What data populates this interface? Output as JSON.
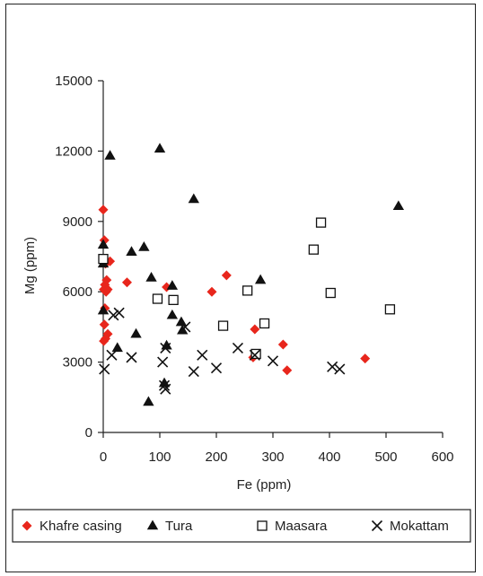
{
  "chart_data": {
    "type": "scatter",
    "title": "",
    "xlabel": "Fe (ppm)",
    "ylabel": "Mg (ppm)",
    "xlim": [
      0,
      600
    ],
    "ylim": [
      0,
      15000
    ],
    "xticks": [
      0,
      100,
      200,
      300,
      400,
      500,
      600
    ],
    "yticks": [
      0,
      3000,
      6000,
      9000,
      12000,
      15000
    ],
    "grid": false,
    "legend_placement": "bottom",
    "series": [
      {
        "name": "Khafre casing",
        "marker": "diamond",
        "color": "#e8261c",
        "points": [
          [
            0,
            9500
          ],
          [
            2,
            8200
          ],
          [
            4,
            7200
          ],
          [
            6,
            6500
          ],
          [
            3,
            6300
          ],
          [
            1,
            6100
          ],
          [
            5,
            6000
          ],
          [
            8,
            6100
          ],
          [
            3,
            5300
          ],
          [
            2,
            4600
          ],
          [
            8,
            4200
          ],
          [
            4,
            4000
          ],
          [
            1,
            3900
          ],
          [
            12,
            7300
          ],
          [
            42,
            6400
          ],
          [
            112,
            6200
          ],
          [
            192,
            6000
          ],
          [
            218,
            6700
          ],
          [
            268,
            4400
          ],
          [
            265,
            3200
          ],
          [
            318,
            3750
          ],
          [
            325,
            2650
          ],
          [
            463,
            3150
          ]
        ]
      },
      {
        "name": "Tura",
        "marker": "triangle",
        "color": "#111111",
        "points": [
          [
            12,
            11800
          ],
          [
            100,
            12100
          ],
          [
            160,
            9950
          ],
          [
            522,
            9650
          ],
          [
            0,
            8000
          ],
          [
            0,
            7200
          ],
          [
            50,
            7700
          ],
          [
            72,
            7900
          ],
          [
            85,
            6600
          ],
          [
            122,
            6250
          ],
          [
            278,
            6500
          ],
          [
            0,
            5200
          ],
          [
            122,
            5000
          ],
          [
            138,
            4700
          ],
          [
            140,
            4350
          ],
          [
            58,
            4200
          ],
          [
            25,
            3600
          ],
          [
            112,
            3700
          ],
          [
            108,
            2100
          ],
          [
            80,
            1300
          ]
        ]
      },
      {
        "name": "Maasara",
        "marker": "square",
        "color": "#111111",
        "points": [
          [
            0,
            7400
          ],
          [
            96,
            5700
          ],
          [
            124,
            5650
          ],
          [
            255,
            6050
          ],
          [
            372,
            7800
          ],
          [
            385,
            8950
          ],
          [
            402,
            5950
          ],
          [
            507,
            5250
          ],
          [
            212,
            4550
          ],
          [
            285,
            4650
          ],
          [
            270,
            3350
          ]
        ]
      },
      {
        "name": "Mokattam",
        "marker": "x",
        "color": "#111111",
        "points": [
          [
            2,
            2700
          ],
          [
            18,
            5000
          ],
          [
            28,
            5100
          ],
          [
            15,
            3300
          ],
          [
            50,
            3200
          ],
          [
            105,
            3000
          ],
          [
            110,
            3600
          ],
          [
            145,
            4500
          ],
          [
            108,
            2000
          ],
          [
            110,
            1850
          ],
          [
            160,
            2600
          ],
          [
            175,
            3300
          ],
          [
            200,
            2750
          ],
          [
            238,
            3600
          ],
          [
            268,
            3300
          ],
          [
            300,
            3050
          ],
          [
            405,
            2800
          ],
          [
            418,
            2700
          ]
        ]
      }
    ]
  }
}
